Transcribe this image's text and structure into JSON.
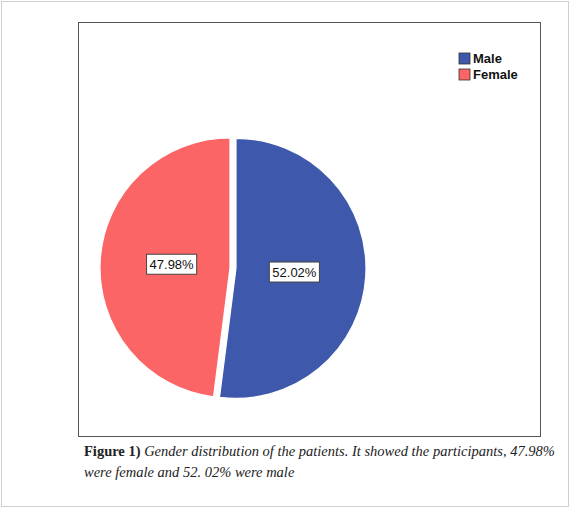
{
  "chart_data": {
    "type": "pie",
    "title": "Figure 1)",
    "subtitle": "Gender distribution of the patients. It showed the participants, 47.98% were female and 52. 02% were male",
    "categories": [
      "Male",
      "Female"
    ],
    "values": [
      52.02,
      47.98
    ],
    "value_labels": [
      "52.02%",
      "47.98%"
    ],
    "colors": [
      "#3e58ac",
      "#fb6565"
    ],
    "legend": "top-right",
    "data_labels": true
  }
}
